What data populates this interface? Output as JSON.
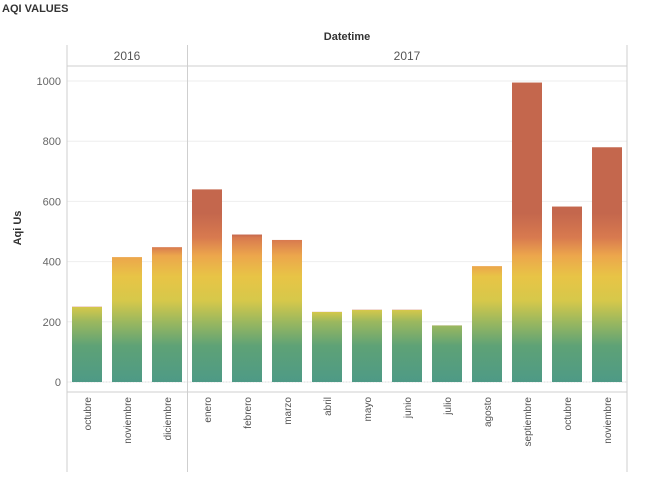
{
  "page": {
    "title": "AQI VALUES"
  },
  "chart_data": {
    "type": "bar",
    "title": "AQI VALUES",
    "xlabel": "Datetime",
    "ylabel": "Aqi Us",
    "ylim": [
      0,
      1050
    ],
    "yticks": [
      0,
      200,
      400,
      600,
      800,
      1000
    ],
    "groups": [
      {
        "label": "2016",
        "categories": [
          "octubre",
          "noviembre",
          "diciembre"
        ]
      },
      {
        "label": "2017",
        "categories": [
          "enero",
          "febrero",
          "marzo",
          "abril",
          "mayo",
          "junio",
          "julio",
          "agosto",
          "septiembre",
          "octubre",
          "noviembre"
        ]
      }
    ],
    "categories": [
      "octubre",
      "noviembre",
      "diciembre",
      "enero",
      "febrero",
      "marzo",
      "abril",
      "mayo",
      "junio",
      "julio",
      "agosto",
      "septiembre",
      "octubre",
      "noviembre"
    ],
    "values": [
      250,
      415,
      448,
      640,
      490,
      472,
      233,
      240,
      240,
      188,
      385,
      995,
      583,
      780
    ],
    "color_scale": [
      {
        "value": 0,
        "color": "#4e9a86"
      },
      {
        "value": 120,
        "color": "#5ea276"
      },
      {
        "value": 200,
        "color": "#9bb85e"
      },
      {
        "value": 270,
        "color": "#d6c84a"
      },
      {
        "value": 350,
        "color": "#e8c446"
      },
      {
        "value": 420,
        "color": "#eca64c"
      },
      {
        "value": 480,
        "color": "#d87a4f"
      },
      {
        "value": 560,
        "color": "#c4674d"
      }
    ],
    "grid": true,
    "legend": "none"
  }
}
